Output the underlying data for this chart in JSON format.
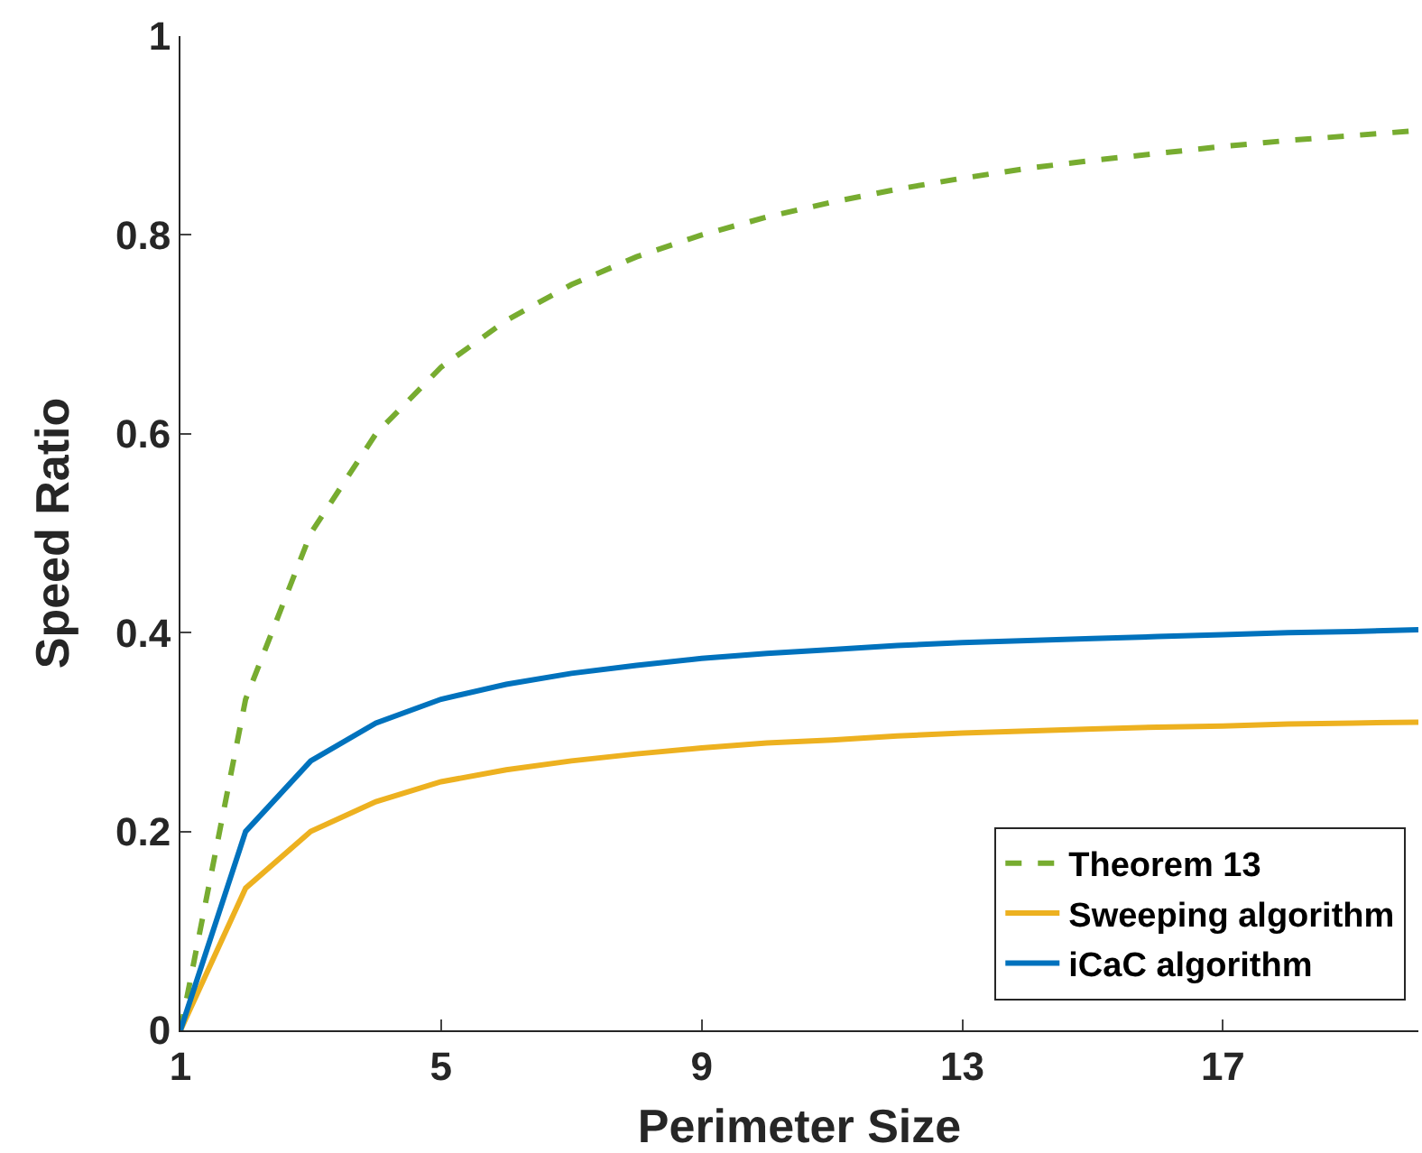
{
  "chart_data": {
    "type": "line",
    "xlabel": "Perimeter Size",
    "ylabel": "Speed Ratio",
    "x": [
      1,
      2,
      3,
      4,
      5,
      6,
      7,
      8,
      9,
      10,
      11,
      12,
      13,
      14,
      15,
      16,
      17,
      18,
      19,
      20
    ],
    "series": [
      {
        "name": "Theorem 13",
        "color": "#77ac30",
        "line_style": "dashed",
        "values": [
          0,
          0.333,
          0.5,
          0.6,
          0.667,
          0.714,
          0.75,
          0.778,
          0.8,
          0.818,
          0.833,
          0.846,
          0.857,
          0.867,
          0.875,
          0.882,
          0.889,
          0.895,
          0.9,
          0.905
        ]
      },
      {
        "name": "Sweeping algorithm",
        "color": "#edb120",
        "line_style": "solid",
        "values": [
          0,
          0.143,
          0.2,
          0.23,
          0.25,
          0.262,
          0.271,
          0.278,
          0.284,
          0.289,
          0.292,
          0.296,
          0.299,
          0.301,
          0.303,
          0.305,
          0.306,
          0.308,
          0.309,
          0.31
        ]
      },
      {
        "name": "iCaC algorithm",
        "color": "#0072bd",
        "line_style": "solid",
        "values": [
          0,
          0.2,
          0.271,
          0.309,
          0.333,
          0.348,
          0.359,
          0.367,
          0.374,
          0.379,
          0.383,
          0.387,
          0.39,
          0.392,
          0.394,
          0.396,
          0.398,
          0.4,
          0.401,
          0.403
        ]
      }
    ],
    "xlim": [
      1,
      20
    ],
    "xticks": [
      1,
      5,
      9,
      13,
      17
    ],
    "ylim": [
      0,
      1
    ],
    "yticks": [
      0,
      0.2,
      0.4,
      0.6,
      0.8,
      1
    ],
    "grid": false,
    "legend": "bottom right",
    "marker": "none"
  }
}
